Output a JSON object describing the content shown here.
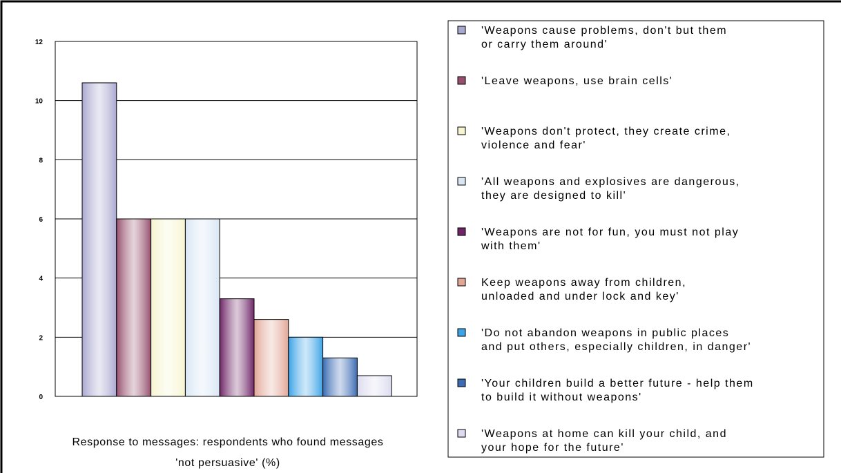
{
  "chart_data": {
    "type": "bar",
    "title": "Response to messages: respondents who found messages\n'not persuasive' (%)",
    "categories": [
      null
    ],
    "ylim": [
      0,
      12
    ],
    "yticks": [
      0,
      2,
      4,
      6,
      8,
      10,
      12
    ],
    "grid": true,
    "series": [
      {
        "name": "'Weapons cause problems, don't but them\nor carry them around'",
        "color": "#a9a8d1",
        "values": [
          10.6
        ]
      },
      {
        "name": "'Leave weapons, use brain cells'",
        "color": "#96506e",
        "values": [
          6
        ]
      },
      {
        "name": "'Weapons don't protect, they create crime,\nviolence and fear'",
        "color": "#f6f5cf",
        "values": [
          6
        ]
      },
      {
        "name": "'All weapons and explosives are dangerous,\nthey are designed to kill'",
        "color": "#d8e6f4",
        "values": [
          6
        ]
      },
      {
        "name": "'Weapons are not for fun, you must not play\nwith them'",
        "color": "#6e2567",
        "values": [
          3.3
        ]
      },
      {
        "name": "Keep weapons away from children,\nunloaded and under lock and key'",
        "color": "#e2a696",
        "values": [
          2.6
        ]
      },
      {
        "name": "'Do not abandon weapons in public places\nand put others, especially children, in danger'",
        "color": "#3ba3e6",
        "values": [
          2
        ]
      },
      {
        "name": "'Your children build a better future - help them\nto build it without weapons'",
        "color": "#3a6bb3",
        "values": [
          1.3
        ]
      },
      {
        "name": "'Weapons at home can kill your child, and\nyour hope for the future'",
        "color": "#dcdbef",
        "values": [
          0.7
        ]
      }
    ]
  }
}
